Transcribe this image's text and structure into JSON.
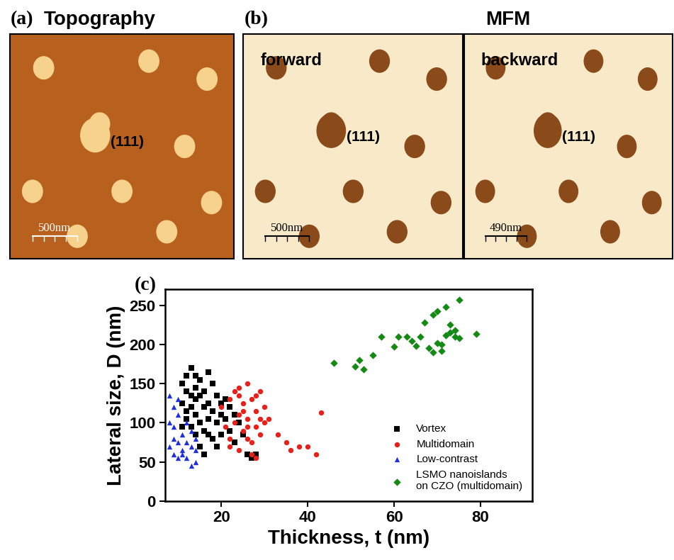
{
  "panels": {
    "a": {
      "panel_label": "(a)",
      "title": "Topography",
      "images": [
        {
          "annotation": "(111)",
          "scale_bar": "500nm"
        }
      ]
    },
    "b": {
      "panel_label": "(b)",
      "title": "MFM",
      "images": [
        {
          "name": "forward",
          "annotation": "(111)",
          "scale_bar": "500nm"
        },
        {
          "name": "backward",
          "annotation": "(111)",
          "scale_bar": "490nm"
        }
      ]
    }
  },
  "chart_data": {
    "type": "scatter",
    "panel_label": "(c)",
    "x_label": "Thickness, t (nm)",
    "y_label": "Lateral size, D (nm)",
    "xlim": [
      7,
      92
    ],
    "xticks": [
      20,
      40,
      60,
      80
    ],
    "ylim": [
      0,
      270
    ],
    "yticks": [
      0,
      50,
      100,
      150,
      200,
      250
    ],
    "legend": "lower right",
    "series": [
      {
        "name": "Vortex",
        "color": "#000000",
        "marker": "square",
        "x": [
          11,
          12,
          12,
          13,
          13,
          14,
          14,
          15,
          15,
          16,
          16,
          17,
          17,
          18,
          18,
          12,
          13,
          14,
          11,
          12,
          15,
          16,
          17,
          19,
          19,
          20,
          20,
          21,
          22,
          22,
          23,
          24,
          25,
          26,
          27,
          28,
          14,
          13,
          15,
          16,
          18,
          19,
          21,
          23,
          11,
          17,
          14,
          20
        ],
        "values": [
          150,
          160,
          140,
          170,
          120,
          130,
          110,
          155,
          100,
          140,
          90,
          165,
          125,
          115,
          80,
          105,
          95,
          85,
          125,
          115,
          135,
          120,
          105,
          100,
          70,
          125,
          85,
          130,
          120,
          90,
          110,
          100,
          85,
          60,
          55,
          60,
          145,
          135,
          70,
          60,
          150,
          135,
          105,
          75,
          95,
          85,
          160,
          110
        ]
      },
      {
        "name": "Multidomain",
        "color": "#e8201a",
        "marker": "circle",
        "x": [
          20,
          21,
          22,
          22,
          23,
          23,
          24,
          24,
          25,
          25,
          26,
          26,
          27,
          27,
          28,
          28,
          29,
          29,
          30,
          30,
          22,
          24,
          26,
          27,
          28,
          25,
          29,
          31,
          33,
          35,
          36,
          38,
          40,
          42,
          43,
          24,
          26,
          28
        ],
        "values": [
          120,
          95,
          130,
          80,
          140,
          100,
          145,
          110,
          125,
          90,
          150,
          105,
          130,
          75,
          115,
          95,
          140,
          85,
          120,
          100,
          70,
          65,
          80,
          60,
          55,
          115,
          105,
          105,
          85,
          75,
          65,
          70,
          70,
          60,
          113,
          135,
          95,
          135
        ]
      },
      {
        "name": "Low-contrast",
        "color": "#1f2ee0",
        "marker": "triangle",
        "x": [
          8,
          8,
          9,
          9,
          9,
          10,
          10,
          10,
          11,
          11,
          12,
          12,
          13,
          13,
          14,
          14,
          8,
          9,
          10,
          11,
          12,
          13,
          14
        ],
        "values": [
          135,
          70,
          120,
          60,
          95,
          75,
          110,
          55,
          65,
          85,
          100,
          55,
          90,
          70,
          50,
          80,
          100,
          80,
          130,
          60,
          75,
          45,
          65
        ]
      },
      {
        "name": "LSMO nanoislands\non CZO (multidomain)",
        "color": "#138a13",
        "marker": "diamond",
        "x": [
          46,
          51,
          52,
          53,
          55,
          57,
          60,
          61,
          63,
          64,
          65,
          66,
          67,
          68,
          69,
          69,
          70,
          70,
          71,
          71,
          72,
          72,
          73,
          73,
          74,
          74,
          75,
          75,
          79
        ],
        "values": [
          176,
          172,
          180,
          168,
          186,
          210,
          197,
          210,
          210,
          204,
          198,
          210,
          228,
          195,
          190,
          238,
          202,
          242,
          192,
          200,
          248,
          212,
          225,
          215,
          210,
          218,
          257,
          208,
          213
        ]
      }
    ]
  }
}
